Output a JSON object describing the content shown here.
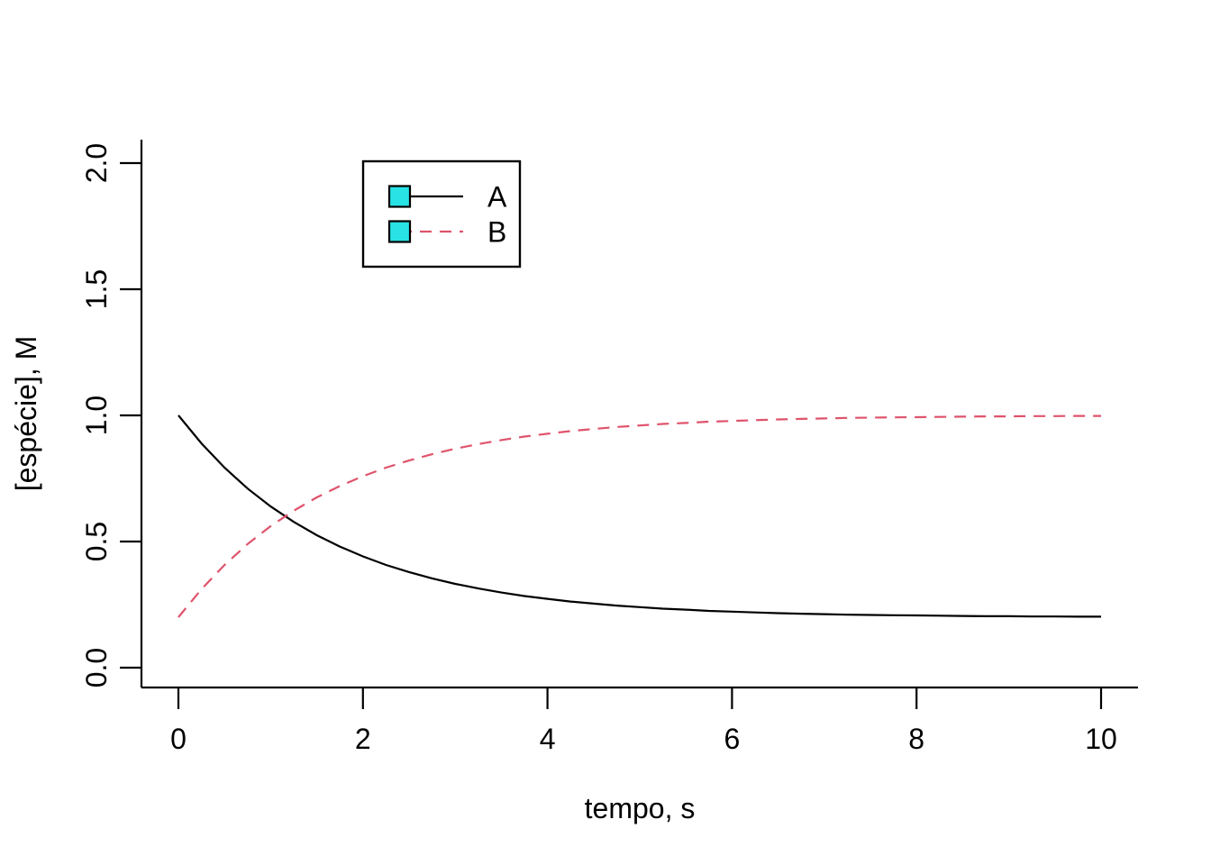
{
  "figure": {
    "background": "#FFFFFF",
    "text_color": "#000000"
  },
  "chart_data": {
    "type": "line",
    "title": "",
    "xlabel": "tempo, s",
    "ylabel": "[espécie], M",
    "xlim": [
      0,
      10
    ],
    "ylim": [
      0,
      2
    ],
    "grid": false,
    "x_ticks": [
      0,
      2,
      4,
      6,
      8,
      10
    ],
    "x_tick_labels": [
      "0",
      "2",
      "4",
      "6",
      "8",
      "10"
    ],
    "y_ticks": [
      0.0,
      0.5,
      1.0,
      1.5,
      2.0
    ],
    "y_tick_labels": [
      "0.0",
      "0.5",
      "1.0",
      "1.5",
      "2.0"
    ],
    "legend": {
      "position": "top-left-inset",
      "border": true,
      "marker": "filled-square",
      "marker_fill": "#28E2E5",
      "marker_border": "#000000"
    },
    "x": [
      0,
      0.25,
      0.5,
      0.75,
      1,
      1.25,
      1.5,
      1.75,
      2,
      2.25,
      2.5,
      2.75,
      3,
      3.25,
      3.5,
      3.75,
      4,
      4.25,
      4.5,
      4.75,
      5,
      5.25,
      5.5,
      5.75,
      6,
      6.25,
      6.5,
      6.75,
      7,
      7.25,
      7.5,
      7.75,
      8,
      8.25,
      8.5,
      8.75,
      9,
      9.25,
      9.5,
      9.75,
      10
    ],
    "series": [
      {
        "name": "A",
        "color": "#000000",
        "line_style": "solid",
        "values": [
          1.0,
          0.889,
          0.793,
          0.71,
          0.639,
          0.578,
          0.525,
          0.48,
          0.441,
          0.407,
          0.379,
          0.354,
          0.332,
          0.314,
          0.298,
          0.284,
          0.273,
          0.262,
          0.254,
          0.246,
          0.24,
          0.234,
          0.23,
          0.225,
          0.222,
          0.219,
          0.216,
          0.214,
          0.212,
          0.21,
          0.209,
          0.208,
          0.207,
          0.206,
          0.205,
          0.204,
          0.204,
          0.203,
          0.203,
          0.202,
          0.202
        ]
      },
      {
        "name": "B",
        "color": "#DF536B",
        "line_style": "dashed",
        "values": [
          0.2,
          0.311,
          0.407,
          0.49,
          0.561,
          0.622,
          0.675,
          0.72,
          0.759,
          0.793,
          0.821,
          0.846,
          0.868,
          0.886,
          0.902,
          0.916,
          0.927,
          0.938,
          0.946,
          0.954,
          0.96,
          0.966,
          0.97,
          0.975,
          0.978,
          0.981,
          0.984,
          0.986,
          0.988,
          0.99,
          0.991,
          0.992,
          0.993,
          0.994,
          0.995,
          0.996,
          0.996,
          0.997,
          0.997,
          0.998,
          0.998
        ]
      }
    ]
  }
}
